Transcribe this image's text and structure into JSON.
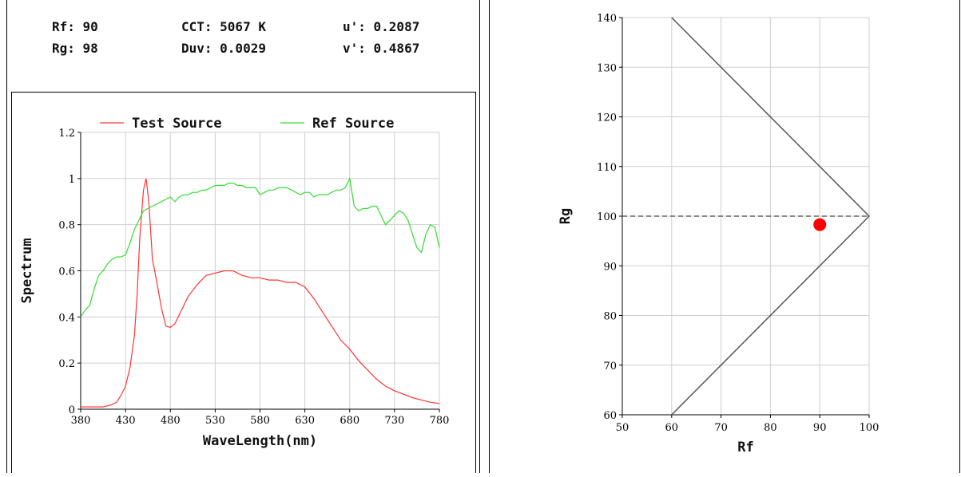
{
  "stats": {
    "rf": "Rf: 90",
    "rg": "Rg: 98",
    "cct": "CCT: 5067 K",
    "duv": "Duv: 0.0029",
    "u": "u': 0.2087",
    "v": "v': 0.4867"
  },
  "chart_data": [
    {
      "type": "line",
      "xlabel": "WaveLength(nm)",
      "ylabel": "Spectrum",
      "xlim": [
        380,
        780
      ],
      "ylim": [
        0,
        1.2
      ],
      "xticks": [
        "380",
        "430",
        "480",
        "530",
        "580",
        "630",
        "680",
        "730",
        "780"
      ],
      "yticks": [
        "0",
        "0.2",
        "0.4",
        "0.6",
        "0.8",
        "1",
        "1.2"
      ],
      "grid": true,
      "legend_position": "top",
      "series": [
        {
          "name": "Test Source",
          "color": "#ff3333",
          "x": [
            380,
            390,
            400,
            405,
            410,
            415,
            420,
            425,
            430,
            435,
            440,
            443,
            446,
            450,
            453,
            456,
            460,
            465,
            470,
            475,
            480,
            485,
            490,
            495,
            500,
            510,
            520,
            530,
            540,
            550,
            560,
            570,
            580,
            590,
            600,
            610,
            620,
            630,
            640,
            650,
            660,
            670,
            680,
            690,
            700,
            710,
            720,
            730,
            740,
            750,
            760,
            770,
            780
          ],
          "y": [
            0.01,
            0.01,
            0.01,
            0.01,
            0.015,
            0.02,
            0.03,
            0.06,
            0.1,
            0.18,
            0.32,
            0.5,
            0.75,
            0.95,
            1.0,
            0.9,
            0.65,
            0.55,
            0.44,
            0.36,
            0.355,
            0.37,
            0.41,
            0.45,
            0.49,
            0.54,
            0.58,
            0.59,
            0.6,
            0.6,
            0.58,
            0.57,
            0.57,
            0.56,
            0.56,
            0.55,
            0.55,
            0.53,
            0.48,
            0.42,
            0.36,
            0.3,
            0.26,
            0.21,
            0.17,
            0.13,
            0.1,
            0.08,
            0.065,
            0.05,
            0.04,
            0.03,
            0.025
          ]
        },
        {
          "name": "Ref Source",
          "color": "#33dd33",
          "x": [
            380,
            385,
            390,
            395,
            400,
            405,
            410,
            415,
            420,
            425,
            430,
            435,
            440,
            445,
            450,
            455,
            460,
            465,
            470,
            475,
            480,
            485,
            490,
            495,
            500,
            505,
            510,
            515,
            520,
            525,
            530,
            535,
            540,
            545,
            550,
            555,
            560,
            565,
            570,
            575,
            580,
            585,
            590,
            595,
            600,
            605,
            610,
            615,
            620,
            625,
            630,
            635,
            640,
            645,
            650,
            655,
            660,
            665,
            670,
            675,
            680,
            685,
            690,
            695,
            700,
            705,
            710,
            715,
            720,
            725,
            730,
            735,
            740,
            745,
            750,
            755,
            760,
            765,
            770,
            775,
            780
          ],
          "y": [
            0.4,
            0.43,
            0.45,
            0.52,
            0.58,
            0.6,
            0.63,
            0.65,
            0.66,
            0.66,
            0.67,
            0.72,
            0.78,
            0.82,
            0.86,
            0.87,
            0.88,
            0.89,
            0.9,
            0.91,
            0.92,
            0.9,
            0.92,
            0.93,
            0.93,
            0.94,
            0.94,
            0.95,
            0.95,
            0.96,
            0.97,
            0.97,
            0.97,
            0.98,
            0.98,
            0.97,
            0.97,
            0.96,
            0.96,
            0.96,
            0.93,
            0.94,
            0.95,
            0.95,
            0.96,
            0.96,
            0.96,
            0.95,
            0.94,
            0.93,
            0.94,
            0.94,
            0.92,
            0.93,
            0.93,
            0.93,
            0.94,
            0.95,
            0.95,
            0.96,
            1.0,
            0.88,
            0.86,
            0.87,
            0.87,
            0.88,
            0.88,
            0.84,
            0.8,
            0.82,
            0.84,
            0.86,
            0.85,
            0.82,
            0.76,
            0.7,
            0.68,
            0.76,
            0.8,
            0.79,
            0.7
          ]
        }
      ]
    },
    {
      "type": "scatter",
      "xlabel": "Rf",
      "ylabel": "Rg",
      "xlim": [
        50,
        100
      ],
      "ylim": [
        60,
        140
      ],
      "xticks": [
        "50",
        "60",
        "70",
        "80",
        "90",
        "100"
      ],
      "yticks": [
        "60",
        "70",
        "80",
        "90",
        "100",
        "110",
        "120",
        "130",
        "140"
      ],
      "grid": true,
      "series": [
        {
          "color": "#ff0000",
          "x": [
            90
          ],
          "y": [
            98.3
          ]
        }
      ],
      "boundary": [
        [
          60,
          140
        ],
        [
          100,
          100
        ],
        [
          60,
          60
        ]
      ],
      "reference_line_y": 100
    }
  ]
}
